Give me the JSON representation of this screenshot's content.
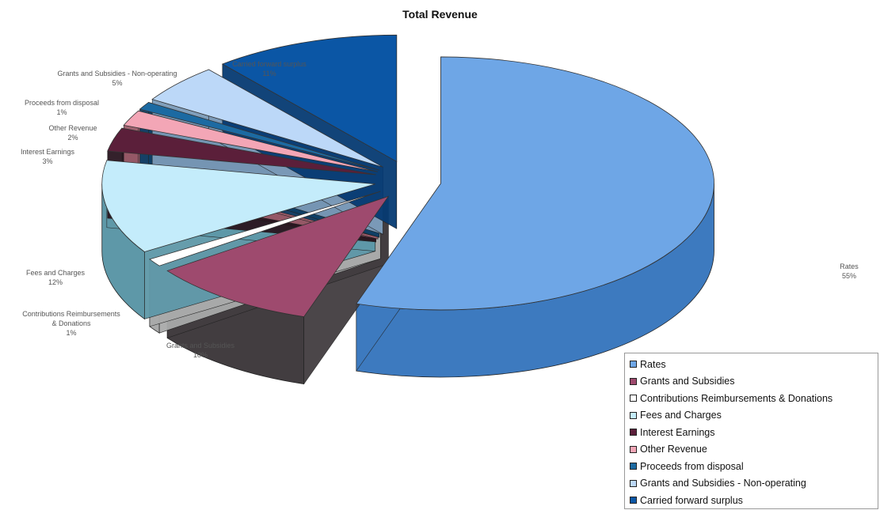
{
  "chart_data": {
    "type": "pie",
    "title": "Total Revenue",
    "slices": [
      {
        "label": "Rates",
        "value": 55,
        "display": "55%",
        "color": "#6ea6e6",
        "side": "#3d7abf"
      },
      {
        "label": "Grants and Subsidies",
        "value": 10,
        "display": "10%",
        "color": "#9e4a6e",
        "side": "#423d40"
      },
      {
        "label": "Contributions Reimbursements & Donations",
        "value": 1,
        "display": "1%",
        "color": "#ffffff",
        "side": "#a9aaaa"
      },
      {
        "label": "Fees and Charges",
        "value": 12,
        "display": "12%",
        "color": "#c4ecfb",
        "side": "#5e98a8"
      },
      {
        "label": "Interest Earnings",
        "value": 3,
        "display": "3%",
        "color": "#5b1f3a",
        "side": "#2a1620"
      },
      {
        "label": "Other Revenue",
        "value": 2,
        "display": "2%",
        "color": "#f3a6b6",
        "side": "#9b5c6a"
      },
      {
        "label": "Proceeds from disposal",
        "value": 1,
        "display": "1%",
        "color": "#1c6aa2",
        "side": "#0f3f66"
      },
      {
        "label": "Grants and Subsidies - Non-operating",
        "value": 5,
        "display": "5%",
        "color": "#bcd8f8",
        "side": "#7b9ab8"
      },
      {
        "label": "Carried forward surplus",
        "value": 11,
        "display": "11%",
        "color": "#0b56a5",
        "side": "#063a72"
      }
    ],
    "legend_position": "bottom-right",
    "legend": [
      "Rates",
      "Grants and Subsidies",
      "Contributions Reimbursements & Donations",
      "Fees and Charges",
      "Interest Earnings",
      "Other Revenue",
      "Proceeds from disposal",
      "Grants and Subsidies - Non-operating",
      "Carried forward surplus"
    ]
  }
}
